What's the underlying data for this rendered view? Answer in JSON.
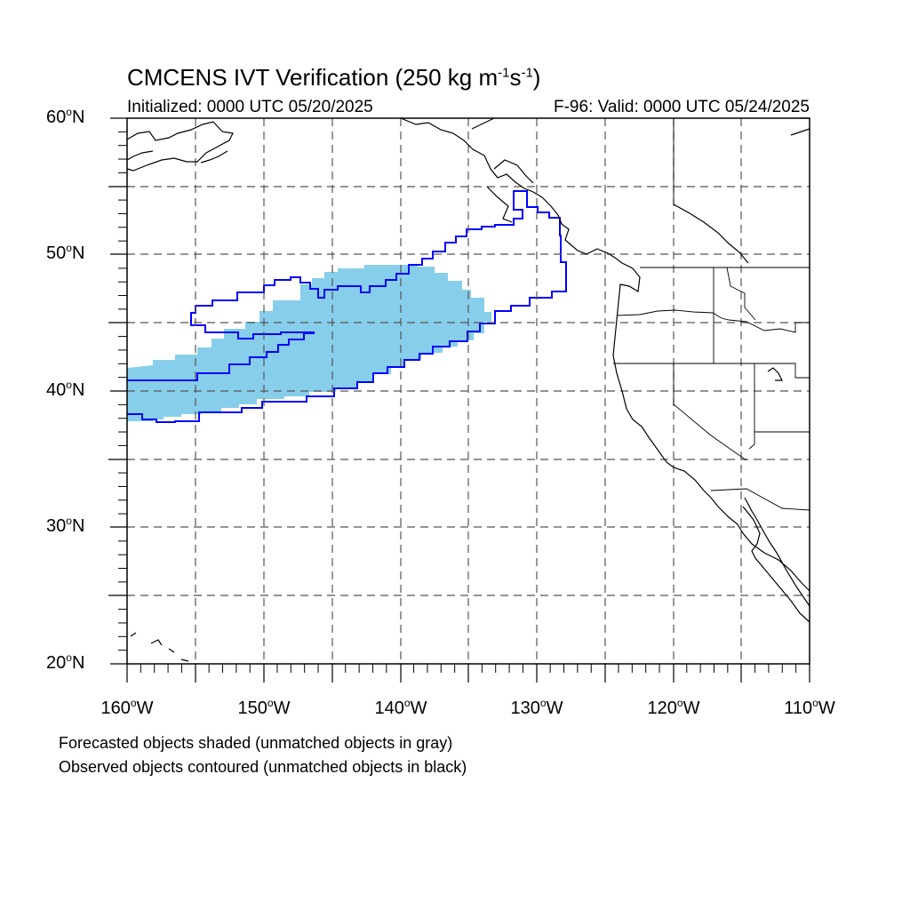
{
  "title": {
    "prefix": "CMCENS IVT Verification (250 kg m",
    "exp1": "-1",
    "mid": "s",
    "exp2": "-1",
    "suffix": ")"
  },
  "subtitle_left": "Initialized: 0000 UTC 05/20/2025",
  "subtitle_right": "F-96: Valid: 0000 UTC 05/24/2025",
  "lat_labels": [
    "60",
    "50",
    "40",
    "30",
    "20"
  ],
  "lat_suffix": "N",
  "lon_labels": [
    "160",
    "150",
    "140",
    "130",
    "120",
    "110"
  ],
  "lon_suffix": "W",
  "degree_symbol": "o",
  "notes": [
    "Forecasted objects shaded (unmatched objects in gray)",
    "Observed objects contoured (unmatched objects in black)"
  ],
  "colors": {
    "forecast_fill": "#87CEEB",
    "observed_contour": "#0000FF",
    "coastline": "#000000",
    "grid": "#555555"
  },
  "map_extent": {
    "lon_min": -160,
    "lon_max": -110,
    "lat_min": 20,
    "lat_max": 60
  }
}
